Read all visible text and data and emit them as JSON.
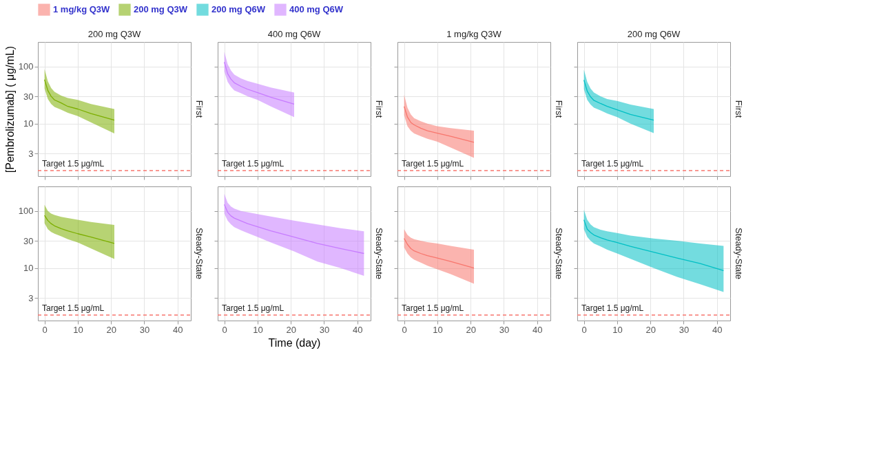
{
  "chart_data": [
    {
      "type": "line",
      "title": "200 mg Q3W",
      "subtitle": "First",
      "ylabel": "[Pembrolizumab] (   μg/mL)",
      "log": "y",
      "grid": true,
      "legend": "top",
      "tick_labels": "y",
      "xlim": [
        -2,
        44
      ],
      "xticks": [
        0,
        10,
        20,
        30,
        40
      ],
      "ylim": [
        1.2,
        270
      ],
      "yticks": [
        3,
        10,
        30,
        100
      ],
      "x": [
        0,
        1,
        2,
        3,
        5,
        7,
        10,
        14,
        21
      ],
      "ref_lines": [
        {
          "axis": "y",
          "value": 1.5,
          "label": "Target 1.5 μg/mL",
          "color": "#f8766d",
          "line_style": "dashed"
        }
      ],
      "series": [
        {
          "name": "200 mg Q3W",
          "color": "#7cae00",
          "values": [
            59,
            38,
            30,
            26,
            23,
            20,
            18,
            15,
            11.5
          ],
          "lower": [
            41,
            27,
            22,
            19.5,
            17.5,
            15.5,
            13.5,
            10.5,
            6.7
          ],
          "upper": [
            90,
            55,
            42,
            36,
            31,
            28,
            26,
            22,
            18
          ]
        }
      ]
    },
    {
      "type": "line",
      "title": "400 mg Q6W",
      "subtitle": "First",
      "log": "y",
      "grid": true,
      "tick_labels": false,
      "xlim": [
        -2,
        44
      ],
      "xticks": [
        0,
        10,
        20,
        30,
        40
      ],
      "ylim": [
        1.2,
        270
      ],
      "yticks": [
        3,
        10,
        30,
        100
      ],
      "x": [
        0,
        1,
        2,
        3,
        5,
        7,
        10,
        14,
        21
      ],
      "ref_lines": [
        {
          "axis": "y",
          "value": 1.5,
          "label": "Target 1.5 μg/mL",
          "color": "#f8766d",
          "line_style": "dashed"
        }
      ],
      "series": [
        {
          "name": "400 mg Q6W",
          "color": "#c77cff",
          "values": [
            120,
            75,
            60,
            52,
            45,
            40,
            35,
            29,
            22
          ],
          "lower": [
            82,
            54,
            44,
            38,
            34,
            30,
            26,
            20,
            13
          ],
          "upper": [
            180,
            110,
            85,
            72,
            62,
            56,
            50,
            43,
            35
          ]
        }
      ]
    },
    {
      "type": "line",
      "title": "1 mg/kg Q3W",
      "subtitle": "First",
      "log": "y",
      "grid": true,
      "tick_labels": false,
      "xlim": [
        -2,
        44
      ],
      "xticks": [
        0,
        10,
        20,
        30,
        40
      ],
      "ylim": [
        1.2,
        270
      ],
      "yticks": [
        3,
        10,
        30,
        100
      ],
      "x": [
        0,
        1,
        2,
        3,
        5,
        7,
        10,
        14,
        21
      ],
      "ref_lines": [
        {
          "axis": "y",
          "value": 1.5,
          "label": "Target 1.5 μg/mL",
          "color": "#f8766d",
          "line_style": "dashed"
        }
      ],
      "series": [
        {
          "name": "1 mg/kg Q3W",
          "color": "#f8766d",
          "values": [
            20,
            13,
            10.5,
            9.5,
            8.3,
            7.5,
            6.8,
            6,
            4.7
          ],
          "lower": [
            14,
            9,
            7.5,
            6.7,
            6,
            5.4,
            4.8,
            3.8,
            2.5
          ],
          "upper": [
            32,
            19,
            14.5,
            12.5,
            11,
            10,
            9,
            8.3,
            7.5
          ]
        }
      ]
    },
    {
      "type": "line",
      "title": "200 mg Q6W",
      "subtitle": "First",
      "log": "y",
      "grid": true,
      "tick_labels": false,
      "xlim": [
        -2,
        44
      ],
      "xticks": [
        0,
        10,
        20,
        30,
        40
      ],
      "ylim": [
        1.2,
        270
      ],
      "yticks": [
        3,
        10,
        30,
        100
      ],
      "x": [
        0,
        1,
        2,
        3,
        5,
        7,
        10,
        14,
        21
      ],
      "ref_lines": [
        {
          "axis": "y",
          "value": 1.5,
          "label": "Target 1.5 μg/mL",
          "color": "#f8766d",
          "line_style": "dashed"
        }
      ],
      "series": [
        {
          "name": "200 mg Q6W",
          "color": "#00bfc4",
          "values": [
            58,
            37,
            29.5,
            25.5,
            22.5,
            20,
            17.5,
            14.5,
            11.5
          ],
          "lower": [
            40,
            26,
            21.5,
            19,
            17,
            15,
            13,
            10,
            6.8
          ],
          "upper": [
            88,
            54,
            41,
            35,
            30,
            27,
            25,
            21.5,
            18
          ]
        }
      ]
    },
    {
      "type": "line",
      "subtitle": "Steady-State",
      "log": "y",
      "grid": true,
      "xlim": [
        -2,
        44
      ],
      "xticks": [
        0,
        10,
        20,
        30,
        40
      ],
      "ylim": [
        1.2,
        270
      ],
      "yticks": [
        3,
        10,
        30,
        100
      ],
      "x": [
        0,
        1,
        2,
        3,
        5,
        7,
        10,
        14,
        21
      ],
      "ref_lines": [
        {
          "axis": "y",
          "value": 1.5,
          "label": "Target 1.5 μg/mL",
          "color": "#f8766d",
          "line_style": "dashed"
        }
      ],
      "series": [
        {
          "color": "#7cae00",
          "values": [
            84,
            68,
            60,
            55,
            49,
            45,
            40,
            35,
            27
          ],
          "lower": [
            61,
            48,
            43,
            40,
            36,
            32,
            28,
            22,
            14.4
          ],
          "upper": [
            128,
            100,
            90,
            85,
            79,
            75,
            70,
            64,
            57
          ]
        }
      ]
    },
    {
      "type": "line",
      "subtitle": "Steady-State",
      "xlabel": "Time (day)",
      "log": "y",
      "grid": true,
      "tick_labels": "x",
      "xlim": [
        -2,
        44
      ],
      "xticks": [
        0,
        10,
        20,
        30,
        40
      ],
      "ylim": [
        1.2,
        270
      ],
      "yticks": [
        3,
        10,
        30,
        100
      ],
      "x": [
        0,
        1,
        2,
        3,
        5,
        7,
        10,
        14,
        21,
        28,
        35,
        42
      ],
      "ref_lines": [
        {
          "axis": "y",
          "value": 1.5,
          "label": "Target 1.5 μg/mL",
          "color": "#f8766d",
          "line_style": "dashed"
        }
      ],
      "series": [
        {
          "color": "#c77cff",
          "values": [
            130,
            95,
            82,
            75,
            67,
            60,
            53,
            45,
            35,
            27,
            22,
            18
          ],
          "lower": [
            90,
            68,
            58,
            52,
            46,
            41,
            35,
            28,
            19.5,
            13,
            10,
            7.3
          ],
          "upper": [
            200,
            140,
            120,
            110,
            100,
            95,
            88,
            80,
            68,
            58,
            50,
            44
          ]
        }
      ]
    },
    {
      "type": "line",
      "subtitle": "Steady-State",
      "log": "y",
      "grid": true,
      "tick_labels": "x",
      "xlim": [
        -2,
        44
      ],
      "xticks": [
        0,
        10,
        20,
        30,
        40
      ],
      "ylim": [
        1.2,
        270
      ],
      "yticks": [
        3,
        10,
        30,
        100
      ],
      "x": [
        0,
        1,
        2,
        3,
        5,
        7,
        10,
        14,
        21
      ],
      "ref_lines": [
        {
          "axis": "y",
          "value": 1.5,
          "label": "Target 1.5 μg/mL",
          "color": "#f8766d",
          "line_style": "dashed"
        }
      ],
      "series": [
        {
          "color": "#f8766d",
          "values": [
            33,
            26,
            22,
            20,
            18,
            16.5,
            15,
            13,
            10
          ],
          "lower": [
            23,
            18,
            15.5,
            14,
            12.5,
            11,
            9.5,
            7.8,
            5.3
          ],
          "upper": [
            48,
            38,
            34,
            32,
            30,
            28.5,
            27,
            24.5,
            21
          ]
        }
      ]
    },
    {
      "type": "line",
      "subtitle": "Steady-State",
      "log": "y",
      "grid": true,
      "tick_labels": "x",
      "xlim": [
        -2,
        44
      ],
      "xticks": [
        0,
        10,
        20,
        30,
        40
      ],
      "ylim": [
        1.2,
        270
      ],
      "yticks": [
        3,
        10,
        30,
        100
      ],
      "x": [
        0,
        1,
        2,
        3,
        5,
        7,
        10,
        14,
        21,
        28,
        35,
        42
      ],
      "ref_lines": [
        {
          "axis": "y",
          "value": 1.5,
          "label": "Target 1.5 μg/mL",
          "color": "#f8766d",
          "line_style": "dashed"
        }
      ],
      "series": [
        {
          "color": "#00bfc4",
          "values": [
            70,
            48,
            42,
            38,
            34,
            31,
            28,
            24,
            19,
            15,
            12,
            9
          ],
          "lower": [
            48,
            35,
            30,
            27,
            24,
            21,
            18,
            14.5,
            10,
            7,
            5.2,
            3.8
          ],
          "upper": [
            105,
            70,
            58,
            52,
            47,
            44,
            41,
            37,
            33,
            30,
            27,
            24.5
          ]
        }
      ]
    }
  ]
}
